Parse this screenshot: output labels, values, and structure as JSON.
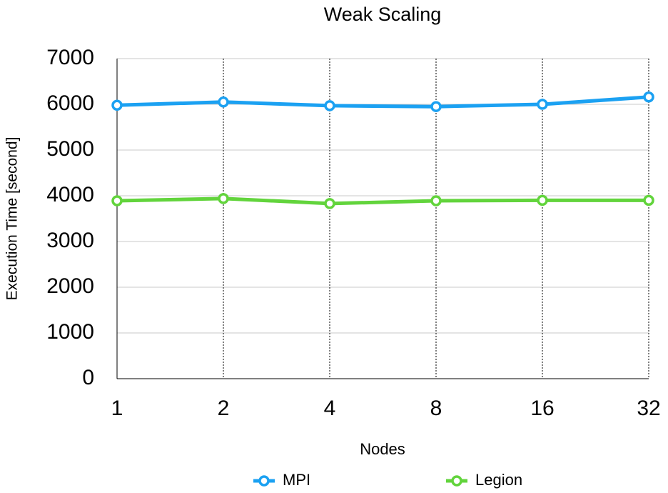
{
  "chart_data": {
    "type": "line",
    "title": "Weak Scaling",
    "x_label": "Nodes",
    "y_label": "Execution Time [second]",
    "categories": [
      "1",
      "2",
      "4",
      "8",
      "16",
      "32"
    ],
    "series": [
      {
        "name": "MPI",
        "color": "#1ba1f2",
        "values": [
          5980,
          6050,
          5970,
          5950,
          6000,
          6160
        ]
      },
      {
        "name": "Legion",
        "color": "#62d43c",
        "values": [
          3890,
          3940,
          3830,
          3890,
          3900,
          3900
        ]
      }
    ],
    "ylim": [
      0,
      7000
    ],
    "yticks": [
      0,
      1000,
      2000,
      3000,
      4000,
      5000,
      6000,
      7000
    ],
    "grid": true
  }
}
